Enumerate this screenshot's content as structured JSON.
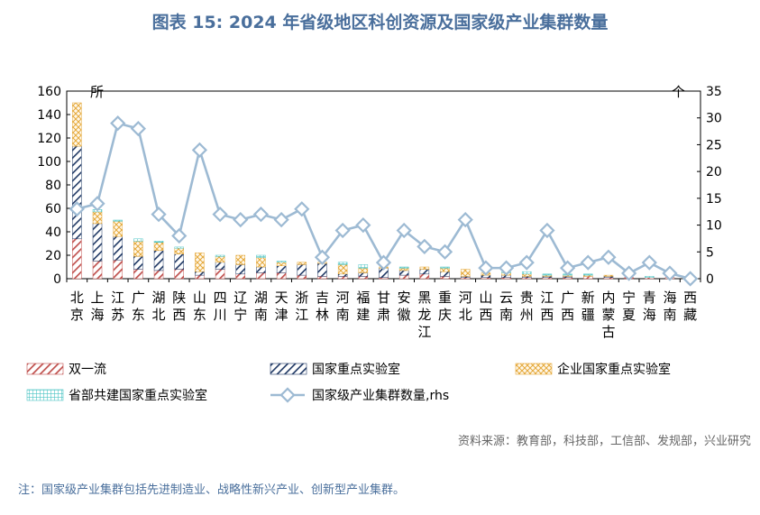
{
  "title": "图表 15: 2024 年省级地区科创资源及国家级产业集群数量",
  "source": "资料来源：教育部，科技部，工信部、发规部，兴业研究",
  "note": "注：国家级产业集群包括先进制造业、战略性新兴产业、创新型产业集群。",
  "colors": {
    "shuangyiliu": "#c0504d",
    "guojiazhongdian": "#1f3864",
    "qiye": "#e4a83a",
    "shengbu": "#4bc4c4",
    "line": "#9dbad3"
  },
  "chart_data": {
    "type": "bar",
    "stacked": true,
    "categories": [
      "北京",
      "上海",
      "江苏",
      "广东",
      "湖北",
      "陕西",
      "山东",
      "四川",
      "辽宁",
      "湖南",
      "天津",
      "浙江",
      "吉林",
      "河南",
      "福建",
      "甘肃",
      "安徽",
      "黑龙江",
      "重庆",
      "河北",
      "山西",
      "云南",
      "贵州",
      "江西",
      "广西",
      "新疆",
      "内蒙古",
      "宁夏",
      "青海",
      "海南",
      "西藏"
    ],
    "left_axis": {
      "unit": "所",
      "ylim": [
        0,
        160
      ],
      "ticks": [
        0,
        20,
        40,
        60,
        80,
        100,
        120,
        140,
        160
      ]
    },
    "right_axis": {
      "unit": "个",
      "ylim": [
        0,
        35
      ],
      "ticks": [
        0,
        5,
        10,
        15,
        20,
        25,
        30,
        35
      ]
    },
    "series": [
      {
        "name": "双一流",
        "key": "shuangyiliu",
        "axis": "left",
        "values": [
          34,
          15,
          16,
          8,
          7,
          8,
          3,
          8,
          4,
          5,
          5,
          3,
          2,
          2,
          2,
          1,
          3,
          4,
          2,
          1,
          1,
          1,
          1,
          1,
          1,
          2,
          1,
          1,
          1,
          1,
          1
        ]
      },
      {
        "name": "国家重点实验室",
        "key": "guojiazhongdian",
        "axis": "left",
        "values": [
          79,
          32,
          20,
          11,
          17,
          13,
          3,
          6,
          8,
          5,
          6,
          9,
          11,
          2,
          3,
          8,
          4,
          4,
          4,
          1,
          2,
          2,
          1,
          1,
          1,
          0,
          1,
          0,
          0,
          0,
          0
        ]
      },
      {
        "name": "企业国家重点实验室",
        "key": "qiye",
        "axis": "left",
        "values": [
          37,
          10,
          13,
          13,
          7,
          5,
          16,
          5,
          8,
          8,
          3,
          2,
          1,
          8,
          4,
          1,
          2,
          2,
          3,
          6,
          2,
          2,
          2,
          1,
          1,
          1,
          1,
          0,
          0,
          0,
          0
        ]
      },
      {
        "name": "省部共建国家重点实验室",
        "key": "shengbu",
        "axis": "left",
        "values": [
          0,
          2,
          1,
          2,
          1,
          1,
          0,
          1,
          0,
          2,
          1,
          0,
          0,
          2,
          3,
          0,
          1,
          0,
          1,
          0,
          0,
          1,
          2,
          1,
          1,
          1,
          0,
          0,
          1,
          0,
          0
        ]
      },
      {
        "name": "国家级产业集群数量,rhs",
        "key": "line",
        "axis": "right",
        "type": "line",
        "values": [
          13,
          14,
          29,
          28,
          12,
          8,
          24,
          12,
          11,
          12,
          11,
          13,
          4,
          9,
          10,
          3,
          9,
          6,
          5,
          11,
          2,
          2,
          3,
          9,
          2,
          3,
          4,
          1,
          3,
          1,
          0
        ]
      }
    ]
  }
}
